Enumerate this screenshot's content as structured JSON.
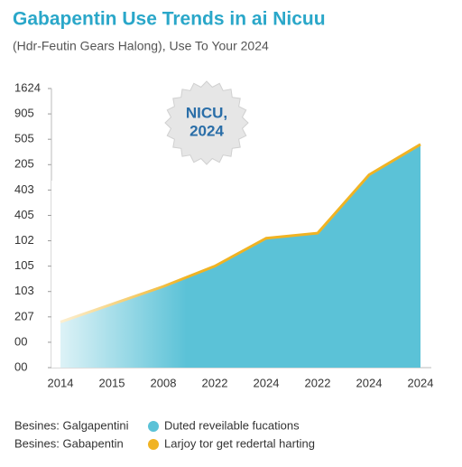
{
  "chart_data": {
    "type": "area",
    "title": "Gabapentin Use Trends in ai Nicuu",
    "subtitle": "(Hdr-Feutin Gears Halong), Use To Your 2024",
    "annotation": [
      "NICU,",
      "2024"
    ],
    "categories": [
      "2014",
      "2015",
      "2008",
      "2022",
      "2024",
      "2022",
      "2024",
      "2024"
    ],
    "series": [
      {
        "name": "Duted reveilable fucations",
        "color": "#5bc2d7",
        "values": [
          1.8,
          2.5,
          3.2,
          4.0,
          5.1,
          5.3,
          7.6,
          8.8
        ]
      },
      {
        "name": "Larjoy tor get redertal harting",
        "color": "#f0b323",
        "values": [
          1.8,
          2.5,
          3.2,
          4.0,
          5.1,
          5.3,
          7.6,
          8.8
        ]
      }
    ],
    "legend_prefixes": [
      "Besines: Galgapentini",
      "Besines: Gabapentin"
    ],
    "ylim": [
      0,
      11
    ],
    "yticks": [
      {
        "value": 0,
        "label": "00"
      },
      {
        "value": 1,
        "label": "00"
      },
      {
        "value": 2,
        "label": "207"
      },
      {
        "value": 3,
        "label": "103"
      },
      {
        "value": 4,
        "label": "105"
      },
      {
        "value": 5,
        "label": "102"
      },
      {
        "value": 6,
        "label": "405"
      },
      {
        "value": 7,
        "label": "403"
      },
      {
        "value": 8,
        "label": "205"
      },
      {
        "value": 9,
        "label": "505"
      },
      {
        "value": 10,
        "label": "905"
      },
      {
        "value": 11,
        "label": "1624"
      }
    ]
  }
}
